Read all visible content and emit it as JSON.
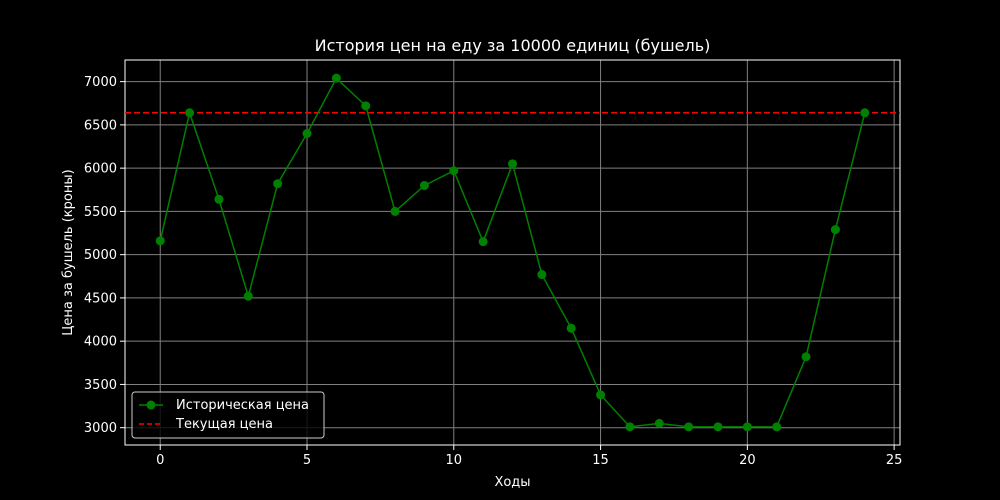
{
  "chart_data": {
    "type": "line",
    "title": "История цен на еду за 10000 единиц (бушель)",
    "xlabel": "Ходы",
    "ylabel": "Цена за бушель (кроны)",
    "xlim": [
      -1.2,
      25.2
    ],
    "ylim": [
      2800,
      7250
    ],
    "xticks": [
      0,
      5,
      10,
      15,
      20,
      25
    ],
    "yticks": [
      3000,
      3500,
      4000,
      4500,
      5000,
      5500,
      6000,
      6500,
      7000
    ],
    "grid": true,
    "legend_position": "bottom-left",
    "series": [
      {
        "name": "Историческая цена",
        "color": "#008000",
        "style": "solid-markers",
        "x": [
          0,
          1,
          2,
          3,
          4,
          5,
          6,
          7,
          8,
          9,
          10,
          11,
          12,
          13,
          14,
          15,
          16,
          17,
          18,
          19,
          20,
          21,
          22,
          23,
          24
        ],
        "y": [
          5160,
          6640,
          5640,
          4520,
          5820,
          6400,
          7040,
          6720,
          5500,
          5800,
          5970,
          5150,
          6050,
          4770,
          4150,
          3380,
          3010,
          3050,
          3010,
          3010,
          3010,
          3010,
          3820,
          5290,
          6640
        ]
      },
      {
        "name": "Текущая цена",
        "color": "#ff0000",
        "style": "dashed-hline",
        "y": 6640
      }
    ]
  }
}
